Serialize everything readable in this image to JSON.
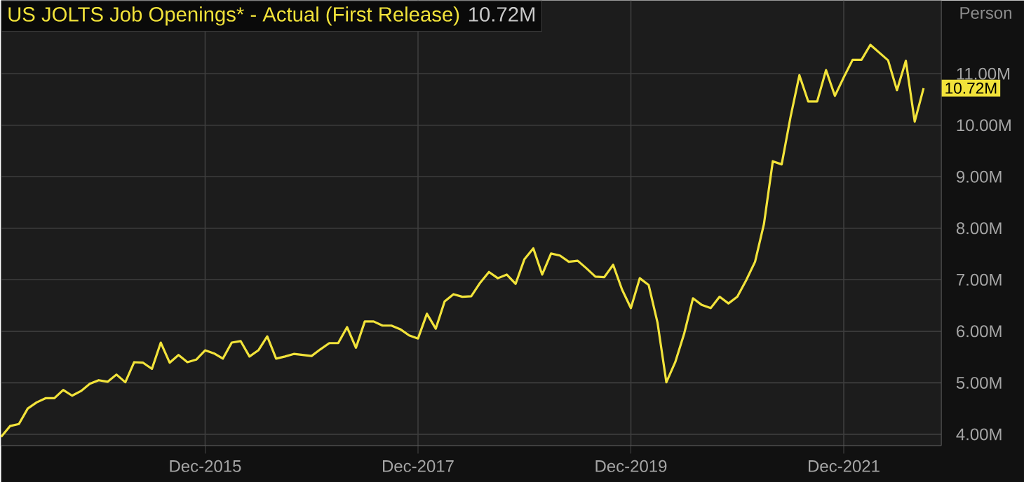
{
  "chart_data": {
    "type": "line",
    "ylabel": "Person",
    "annotations": [
      "10.72M"
    ],
    "x": [
      "2014-01",
      "2014-02",
      "2014-03",
      "2014-04",
      "2014-05",
      "2014-06",
      "2014-07",
      "2014-08",
      "2014-09",
      "2014-10",
      "2014-11",
      "2014-12",
      "2015-01",
      "2015-02",
      "2015-03",
      "2015-04",
      "2015-05",
      "2015-06",
      "2015-07",
      "2015-08",
      "2015-09",
      "2015-10",
      "2015-11",
      "2015-12",
      "2016-01",
      "2016-02",
      "2016-03",
      "2016-04",
      "2016-05",
      "2016-06",
      "2016-07",
      "2016-08",
      "2016-09",
      "2016-10",
      "2016-11",
      "2016-12",
      "2017-01",
      "2017-02",
      "2017-03",
      "2017-04",
      "2017-05",
      "2017-06",
      "2017-07",
      "2017-08",
      "2017-09",
      "2017-10",
      "2017-11",
      "2017-12",
      "2018-01",
      "2018-02",
      "2018-03",
      "2018-04",
      "2018-05",
      "2018-06",
      "2018-07",
      "2018-08",
      "2018-09",
      "2018-10",
      "2018-11",
      "2018-12",
      "2019-01",
      "2019-02",
      "2019-03",
      "2019-04",
      "2019-05",
      "2019-06",
      "2019-07",
      "2019-08",
      "2019-09",
      "2019-10",
      "2019-11",
      "2019-12",
      "2020-01",
      "2020-02",
      "2020-03",
      "2020-04",
      "2020-05",
      "2020-06",
      "2020-07",
      "2020-08",
      "2020-09",
      "2020-10",
      "2020-11",
      "2020-12",
      "2021-01",
      "2021-02",
      "2021-03",
      "2021-04",
      "2021-05",
      "2021-06",
      "2021-07",
      "2021-08",
      "2021-09",
      "2021-10",
      "2021-11",
      "2021-12",
      "2022-01",
      "2022-02",
      "2022-03",
      "2022-04",
      "2022-05",
      "2022-06",
      "2022-07",
      "2022-08",
      "2022-09"
    ],
    "series": [
      {
        "name": "US JOLTS Job Openings* - Actual (First Release)",
        "color": "#f2e33a",
        "values": [
          3.95,
          4.16,
          4.2,
          4.5,
          4.62,
          4.7,
          4.7,
          4.86,
          4.75,
          4.84,
          4.98,
          5.05,
          5.02,
          5.16,
          5.01,
          5.4,
          5.39,
          5.27,
          5.78,
          5.39,
          5.54,
          5.4,
          5.45,
          5.63,
          5.57,
          5.47,
          5.78,
          5.81,
          5.51,
          5.63,
          5.9,
          5.47,
          5.51,
          5.56,
          5.54,
          5.52,
          5.65,
          5.77,
          5.77,
          6.08,
          5.68,
          6.19,
          6.19,
          6.11,
          6.11,
          6.04,
          5.92,
          5.86,
          6.34,
          6.05,
          6.58,
          6.72,
          6.67,
          6.68,
          6.94,
          7.15,
          7.03,
          7.1,
          6.92,
          7.4,
          7.61,
          7.1,
          7.51,
          7.47,
          7.35,
          7.37,
          7.22,
          7.06,
          7.05,
          7.29,
          6.81,
          6.45,
          7.03,
          6.9,
          6.17,
          5.01,
          5.4,
          5.95,
          6.64,
          6.51,
          6.45,
          6.67,
          6.54,
          6.67,
          6.99,
          7.35,
          8.08,
          9.3,
          9.24,
          10.16,
          10.97,
          10.46,
          10.46,
          11.07,
          10.57,
          10.93,
          11.27,
          11.27,
          11.56,
          11.41,
          11.26,
          10.68,
          11.25,
          10.07,
          10.72
        ],
        "value_labels": [
          null,
          null,
          null,
          null,
          null,
          null,
          null,
          null,
          null,
          null,
          null,
          null,
          null,
          null,
          null,
          null,
          null,
          null,
          null,
          null,
          null,
          null,
          null,
          null,
          null,
          null,
          null,
          null,
          null,
          null,
          null,
          null,
          null,
          null,
          null,
          null,
          null,
          null,
          null,
          null,
          null,
          null,
          null,
          null,
          null,
          null,
          null,
          null,
          null,
          null,
          null,
          null,
          null,
          null,
          null,
          null,
          null,
          null,
          null,
          null,
          null,
          null,
          null,
          null,
          null,
          null,
          null,
          null,
          null,
          null,
          null,
          null,
          null,
          null,
          null,
          null,
          null,
          null,
          null,
          null,
          null,
          null,
          null,
          null,
          null,
          null,
          null,
          null,
          null,
          null,
          null,
          null,
          null,
          null,
          null,
          null,
          null,
          null,
          null,
          null,
          null,
          null,
          null,
          null,
          "10.72M"
        ]
      }
    ],
    "xlim": [
      "2014-01",
      "2022-11"
    ],
    "xticks": [
      {
        "value": "2015-12",
        "label": "Dec-2015"
      },
      {
        "value": "2017-12",
        "label": "Dec-2017"
      },
      {
        "value": "2019-12",
        "label": "Dec-2019"
      },
      {
        "value": "2021-12",
        "label": "Dec-2021"
      }
    ],
    "ylim": [
      3.78,
      12.42
    ],
    "yticks": [
      {
        "value": 4,
        "label": "4.00M"
      },
      {
        "value": 5,
        "label": "5.00M"
      },
      {
        "value": 6,
        "label": "6.00M"
      },
      {
        "value": 7,
        "label": "7.00M"
      },
      {
        "value": 8,
        "label": "8.00M"
      },
      {
        "value": 9,
        "label": "9.00M"
      },
      {
        "value": 10,
        "label": "10.00M"
      },
      {
        "value": 11,
        "label": "11.00M"
      }
    ],
    "grid": true,
    "legend": "top left",
    "marker": "none",
    "line_style": "solid"
  }
}
